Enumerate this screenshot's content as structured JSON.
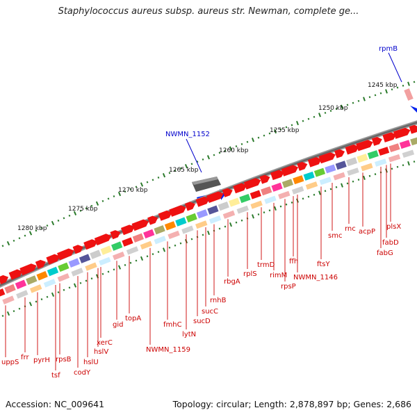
{
  "title": "Staphylococcus aureus subsp. aureus str. Newman, complete ge...",
  "footer": {
    "accession": "Accession: NC_009641",
    "topology": "Topology: circular; Length: 2,878,897 bp; Genes: 2,686"
  },
  "scale_ticks": [
    {
      "label": "1245 kbp"
    },
    {
      "label": "1250 kbp"
    },
    {
      "label": "1255 kbp"
    },
    {
      "label": "1260 kbp"
    },
    {
      "label": "1265 kbp"
    },
    {
      "label": "1270 kbp"
    },
    {
      "label": "1275 kbp"
    },
    {
      "label": "1280 kbp"
    }
  ],
  "features_outer": [
    {
      "label": "rpmB",
      "color": "#0000cc"
    },
    {
      "label": "NWMN_1152",
      "color": "#0000cc"
    }
  ],
  "gene_labels": [
    {
      "label": "uppS"
    },
    {
      "label": "frr"
    },
    {
      "label": "pyrH"
    },
    {
      "label": "tsf"
    },
    {
      "label": "rpsB"
    },
    {
      "label": "codY"
    },
    {
      "label": "hslU"
    },
    {
      "label": "hslV"
    },
    {
      "label": "xerC"
    },
    {
      "label": "gid"
    },
    {
      "label": "topA"
    },
    {
      "label": "NWMN_1159"
    },
    {
      "label": "fmhC"
    },
    {
      "label": "lytN"
    },
    {
      "label": "sucD"
    },
    {
      "label": "sucC"
    },
    {
      "label": "rnhB"
    },
    {
      "label": "rbgA"
    },
    {
      "label": "rplS"
    },
    {
      "label": "trmD"
    },
    {
      "label": "rimM"
    },
    {
      "label": "rpsP"
    },
    {
      "label": "ffh"
    },
    {
      "label": "NWMN_1146"
    },
    {
      "label": "ftsY"
    },
    {
      "label": "smc"
    },
    {
      "label": "rnc"
    },
    {
      "label": "acpP"
    },
    {
      "label": "fabD"
    },
    {
      "label": "fabG"
    },
    {
      "label": "plsX"
    }
  ],
  "colors": {
    "forward_cds": "#ee0000",
    "outer_feature": "#0000ee",
    "backbone": "#888888",
    "tick": "#2a7a2a",
    "label_line": "#cc0000"
  }
}
